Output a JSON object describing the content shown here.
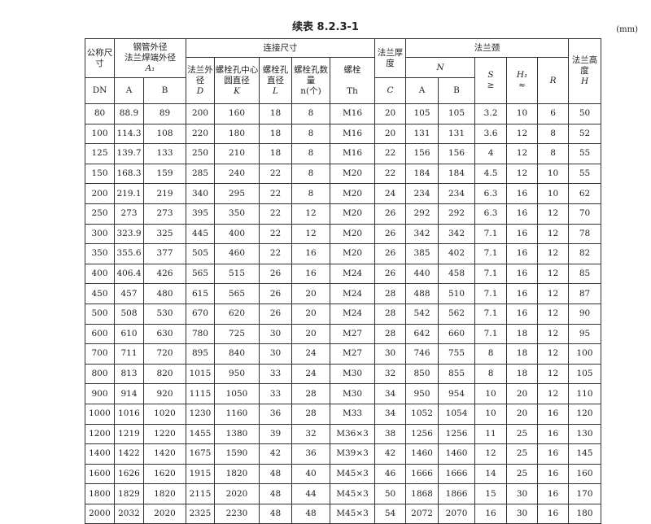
{
  "title": "续表 8.2.3-1",
  "unit": "(mm)",
  "header": {
    "dn": "公称尺寸",
    "dn_sym": "DN",
    "pipe": "钢管外径\n法兰焊端外径",
    "pipe_sym": "A₁",
    "conn": "连接尺寸",
    "d": "法兰外径",
    "d_sym": "D",
    "k": "螺栓孔中心圆直径",
    "k_sym": "K",
    "l": "螺栓孔直径",
    "l_sym": "L",
    "n": "螺栓孔数量",
    "n_sym": "n(个)",
    "th": "螺栓",
    "th_sym": "Th",
    "c": "法兰厚度",
    "c_sym": "C",
    "neck": "法兰颈",
    "neck_n": "N",
    "s": "S",
    "s_sub": "≥",
    "h1": "H₁",
    "h1_sub": "≈",
    "r": "R",
    "h": "法兰高度",
    "h_sym": "H",
    "a": "A",
    "b": "B"
  },
  "rows": [
    [
      "80",
      "88.9",
      "89",
      "200",
      "160",
      "18",
      "8",
      "M16",
      "20",
      "105",
      "105",
      "3.2",
      "10",
      "6",
      "50"
    ],
    [
      "100",
      "114.3",
      "108",
      "220",
      "180",
      "18",
      "8",
      "M16",
      "20",
      "131",
      "131",
      "3.6",
      "12",
      "8",
      "52"
    ],
    [
      "125",
      "139.7",
      "133",
      "250",
      "210",
      "18",
      "8",
      "M16",
      "22",
      "156",
      "156",
      "4",
      "12",
      "8",
      "55"
    ],
    [
      "150",
      "168.3",
      "159",
      "285",
      "240",
      "22",
      "8",
      "M20",
      "22",
      "184",
      "184",
      "4.5",
      "12",
      "10",
      "55"
    ],
    [
      "200",
      "219.1",
      "219",
      "340",
      "295",
      "22",
      "8",
      "M20",
      "24",
      "234",
      "234",
      "6.3",
      "16",
      "10",
      "62"
    ],
    [
      "250",
      "273",
      "273",
      "395",
      "350",
      "22",
      "12",
      "M20",
      "26",
      "292",
      "292",
      "6.3",
      "16",
      "12",
      "70"
    ],
    [
      "300",
      "323.9",
      "325",
      "445",
      "400",
      "22",
      "12",
      "M20",
      "26",
      "342",
      "342",
      "7.1",
      "16",
      "12",
      "78"
    ],
    [
      "350",
      "355.6",
      "377",
      "505",
      "460",
      "22",
      "16",
      "M20",
      "26",
      "385",
      "402",
      "7.1",
      "16",
      "12",
      "82"
    ],
    [
      "400",
      "406.4",
      "426",
      "565",
      "515",
      "26",
      "16",
      "M24",
      "26",
      "440",
      "458",
      "7.1",
      "16",
      "12",
      "85"
    ],
    [
      "450",
      "457",
      "480",
      "615",
      "565",
      "26",
      "20",
      "M24",
      "28",
      "488",
      "510",
      "7.1",
      "16",
      "12",
      "87"
    ],
    [
      "500",
      "508",
      "530",
      "670",
      "620",
      "26",
      "20",
      "M24",
      "28",
      "542",
      "562",
      "7.1",
      "16",
      "12",
      "90"
    ],
    [
      "600",
      "610",
      "630",
      "780",
      "725",
      "30",
      "20",
      "M27",
      "28",
      "642",
      "660",
      "7.1",
      "18",
      "12",
      "95"
    ],
    [
      "700",
      "711",
      "720",
      "895",
      "840",
      "30",
      "24",
      "M27",
      "30",
      "746",
      "755",
      "8",
      "18",
      "12",
      "100"
    ],
    [
      "800",
      "813",
      "820",
      "1015",
      "950",
      "33",
      "24",
      "M30",
      "32",
      "850",
      "855",
      "8",
      "18",
      "12",
      "105"
    ],
    [
      "900",
      "914",
      "920",
      "1115",
      "1050",
      "33",
      "28",
      "M30",
      "34",
      "950",
      "954",
      "10",
      "20",
      "12",
      "110"
    ],
    [
      "1000",
      "1016",
      "1020",
      "1230",
      "1160",
      "36",
      "28",
      "M33",
      "34",
      "1052",
      "1054",
      "10",
      "20",
      "16",
      "120"
    ],
    [
      "1200",
      "1219",
      "1220",
      "1455",
      "1380",
      "39",
      "32",
      "M36×3",
      "38",
      "1256",
      "1256",
      "11",
      "25",
      "16",
      "130"
    ],
    [
      "1400",
      "1422",
      "1420",
      "1675",
      "1590",
      "42",
      "36",
      "M39×3",
      "42",
      "1460",
      "1460",
      "12",
      "25",
      "16",
      "145"
    ],
    [
      "1600",
      "1626",
      "1620",
      "1915",
      "1820",
      "48",
      "40",
      "M45×3",
      "46",
      "1666",
      "1666",
      "14",
      "25",
      "16",
      "160"
    ],
    [
      "1800",
      "1829",
      "1820",
      "2115",
      "2020",
      "48",
      "44",
      "M45×3",
      "50",
      "1868",
      "1866",
      "15",
      "30",
      "16",
      "170"
    ],
    [
      "2000",
      "2032",
      "2020",
      "2325",
      "2230",
      "48",
      "48",
      "M45×3",
      "54",
      "2072",
      "2070",
      "16",
      "30",
      "16",
      "180"
    ]
  ]
}
